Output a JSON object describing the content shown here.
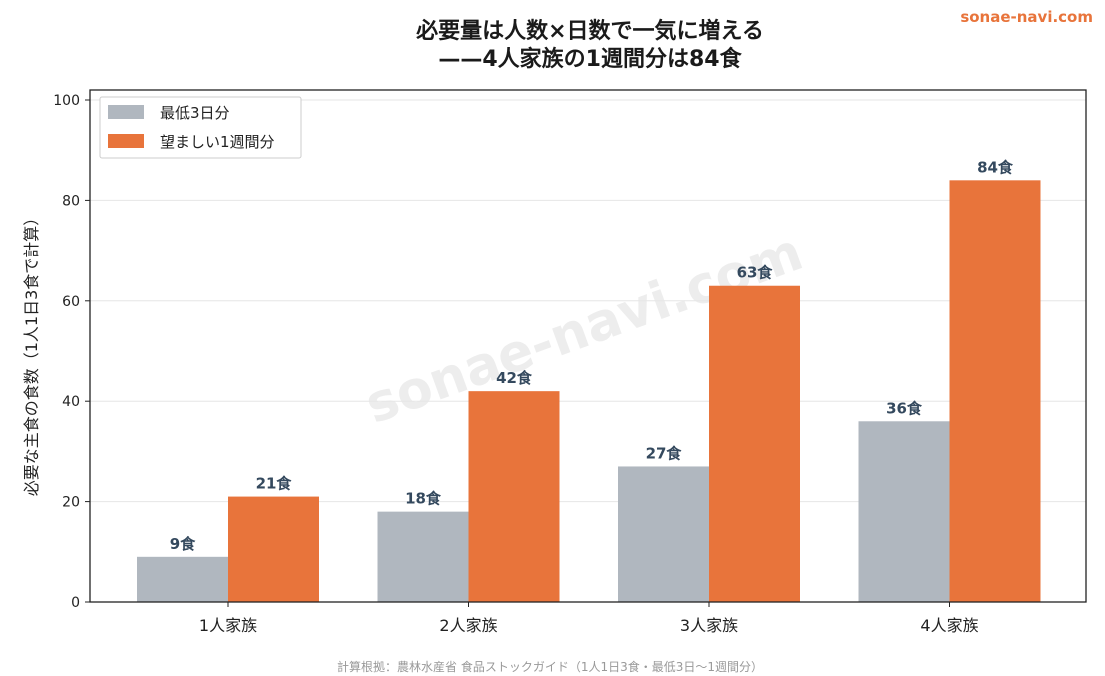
{
  "brand": "sonae-navi.com",
  "watermark": "sonae-navi.com",
  "footer": "計算根拠：農林水産省 食品ストックガイド（1人1日3食・最低3日〜1週間分）",
  "chart_data": {
    "type": "bar",
    "title_line1": "必要量は人数×日数で一気に増える",
    "title_line2": "——4人家族の1週間分は84食",
    "xlabel": "",
    "ylabel": "必要な主食の食数（1人1日3食で計算）",
    "categories": [
      "1人家族",
      "2人家族",
      "3人家族",
      "4人家族"
    ],
    "series": [
      {
        "name": "最低3日分",
        "values": [
          9,
          18,
          27,
          36
        ],
        "color": "#b0b7bf",
        "labels": [
          "9食",
          "18食",
          "27食",
          "36食"
        ]
      },
      {
        "name": "望ましい1週間分",
        "values": [
          21,
          42,
          63,
          84
        ],
        "color": "#e8743b",
        "labels": [
          "21食",
          "42食",
          "63食",
          "84食"
        ]
      }
    ],
    "ylim": [
      0,
      100
    ],
    "yticks": [
      "0",
      "20",
      "40",
      "60",
      "80",
      "100"
    ],
    "grid": true,
    "legend_position": "top-left"
  }
}
